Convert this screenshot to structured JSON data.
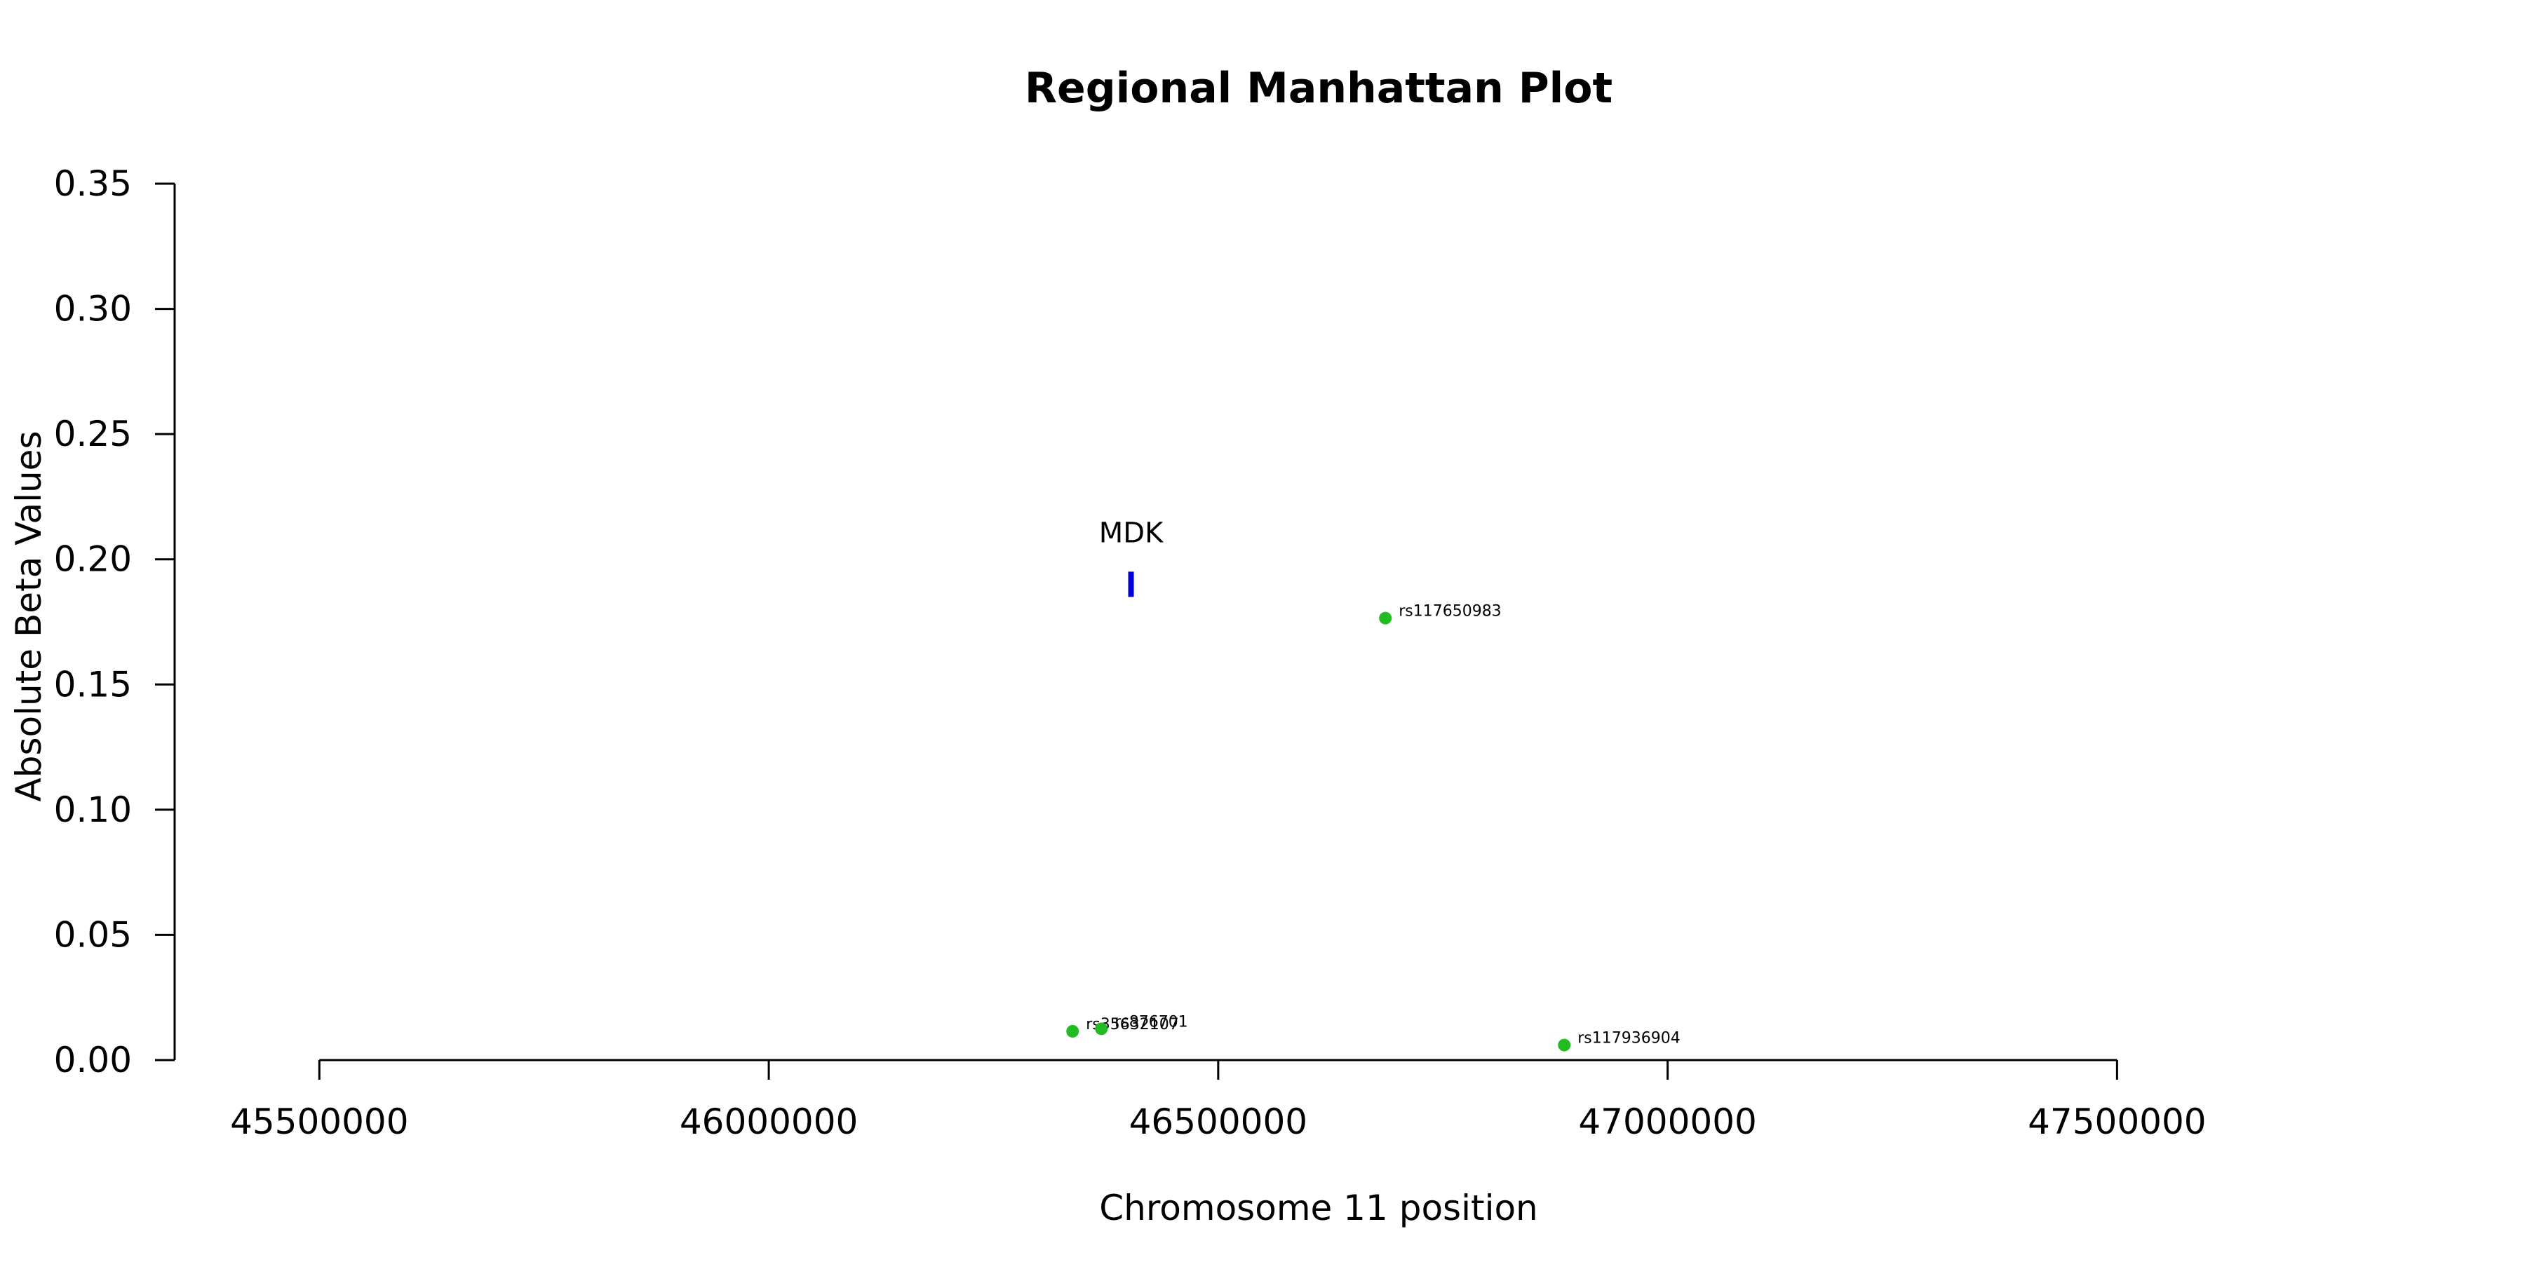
{
  "chart_data": {
    "type": "scatter",
    "title": "Regional Manhattan Plot",
    "xlabel": "Chromosome 11 position",
    "ylabel": "Absolute Beta Values",
    "xlim": [
      45339000,
      47861000
    ],
    "ylim": [
      0,
      0.35
    ],
    "x_ticks": [
      45500000,
      46000000,
      46500000,
      47000000,
      47500000
    ],
    "x_tick_labels": [
      "45500000",
      "46000000",
      "46500000",
      "47000000",
      "47500000"
    ],
    "y_ticks": [
      0,
      0.05,
      0.1,
      0.15,
      0.2,
      0.25,
      0.3,
      0.35
    ],
    "y_tick_labels": [
      "0.00",
      "0.05",
      "0.10",
      "0.15",
      "0.20",
      "0.25",
      "0.30",
      "0.35"
    ],
    "grid": false,
    "legend": "none",
    "point_color": "#22bb22",
    "gene_color": "#0000dd",
    "points": [
      {
        "label": "rs35632107",
        "x": 46338000,
        "y": 0.0115
      },
      {
        "label": "rs876701",
        "x": 46370000,
        "y": 0.0125
      },
      {
        "label": "rs117650983",
        "x": 46686000,
        "y": 0.1765
      },
      {
        "label": "rs117936904",
        "x": 46885000,
        "y": 0.006
      }
    ],
    "genes": [
      {
        "name": "MDK",
        "x": 46403000,
        "y": 0.19
      }
    ]
  }
}
